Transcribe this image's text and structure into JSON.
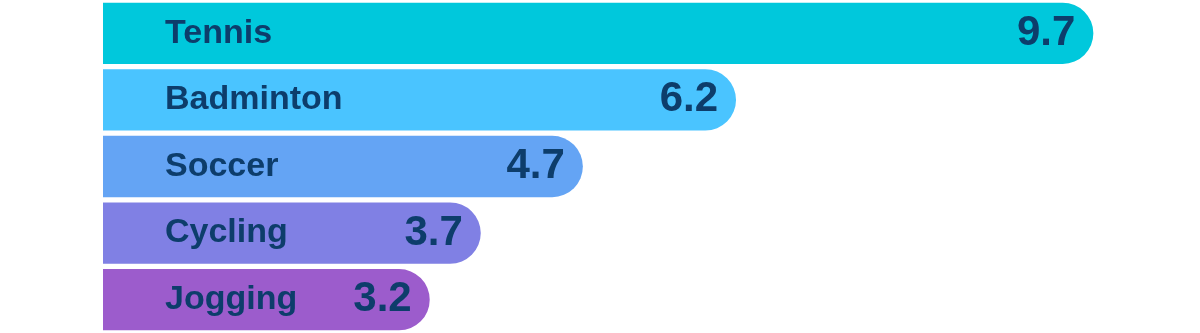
{
  "chart_data": {
    "type": "bar",
    "orientation": "horizontal",
    "categories": [
      "Tennis",
      "Badminton",
      "Soccer",
      "Cycling",
      "Jogging"
    ],
    "values": [
      9.7,
      6.2,
      4.7,
      3.7,
      3.2
    ],
    "colors": [
      "#00c8dc",
      "#4ac4ff",
      "#64a4f4",
      "#8080e4",
      "#9c5ccc"
    ],
    "data_labels": true
  }
}
